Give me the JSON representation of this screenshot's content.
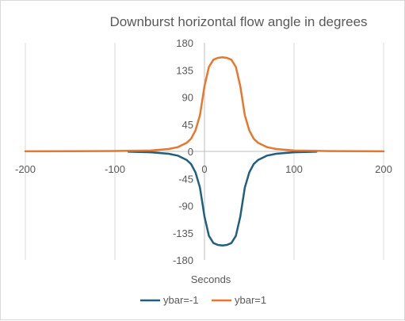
{
  "chart_data": {
    "type": "line",
    "title": "Downburst horizontal flow angle in degrees",
    "xlabel": "Seconds",
    "ylabel": "",
    "xlim": [
      -200,
      200
    ],
    "ylim": [
      -180,
      180
    ],
    "x_ticks": [
      "-200",
      "-100",
      "0",
      "100",
      "200"
    ],
    "y_ticks": [
      "180",
      "135",
      "90",
      "45",
      "0",
      "-45",
      "-90",
      "-135",
      "-180"
    ],
    "grid": "vertical-major",
    "legend_position": "bottom",
    "colors": {
      "ybar_neg": "#1f5f7f",
      "ybar_pos": "#e8772e",
      "grid": "#d9d9d9",
      "axis": "#bfbfbf"
    },
    "series": [
      {
        "name": "ybar=-1",
        "color": "#1f5f7f",
        "x": [
          -85,
          -60,
          -40,
          -30,
          -20,
          -15,
          -10,
          -5,
          0,
          5,
          10,
          15,
          20,
          25,
          30,
          35,
          40,
          45,
          50,
          55,
          60,
          70,
          80,
          100,
          125
        ],
        "y": [
          -0.5,
          -1.5,
          -4,
          -7,
          -14,
          -21,
          -35,
          -60,
          -108,
          -140,
          -152,
          -155,
          -156,
          -155,
          -152,
          -140,
          -108,
          -60,
          -35,
          -21,
          -14,
          -7,
          -4,
          -1.5,
          -0.5
        ]
      },
      {
        "name": "ybar=1",
        "color": "#e8772e",
        "x": [
          -200,
          -150,
          -100,
          -60,
          -40,
          -30,
          -20,
          -15,
          -10,
          -5,
          0,
          5,
          10,
          15,
          20,
          25,
          30,
          35,
          40,
          45,
          50,
          55,
          60,
          70,
          80,
          100,
          140,
          200
        ],
        "y": [
          0.1,
          0.3,
          0.6,
          1.5,
          4,
          7,
          14,
          21,
          35,
          60,
          108,
          140,
          152,
          155,
          156,
          155,
          152,
          140,
          108,
          60,
          35,
          21,
          14,
          7,
          4,
          1.5,
          0.5,
          0.1
        ]
      }
    ]
  }
}
